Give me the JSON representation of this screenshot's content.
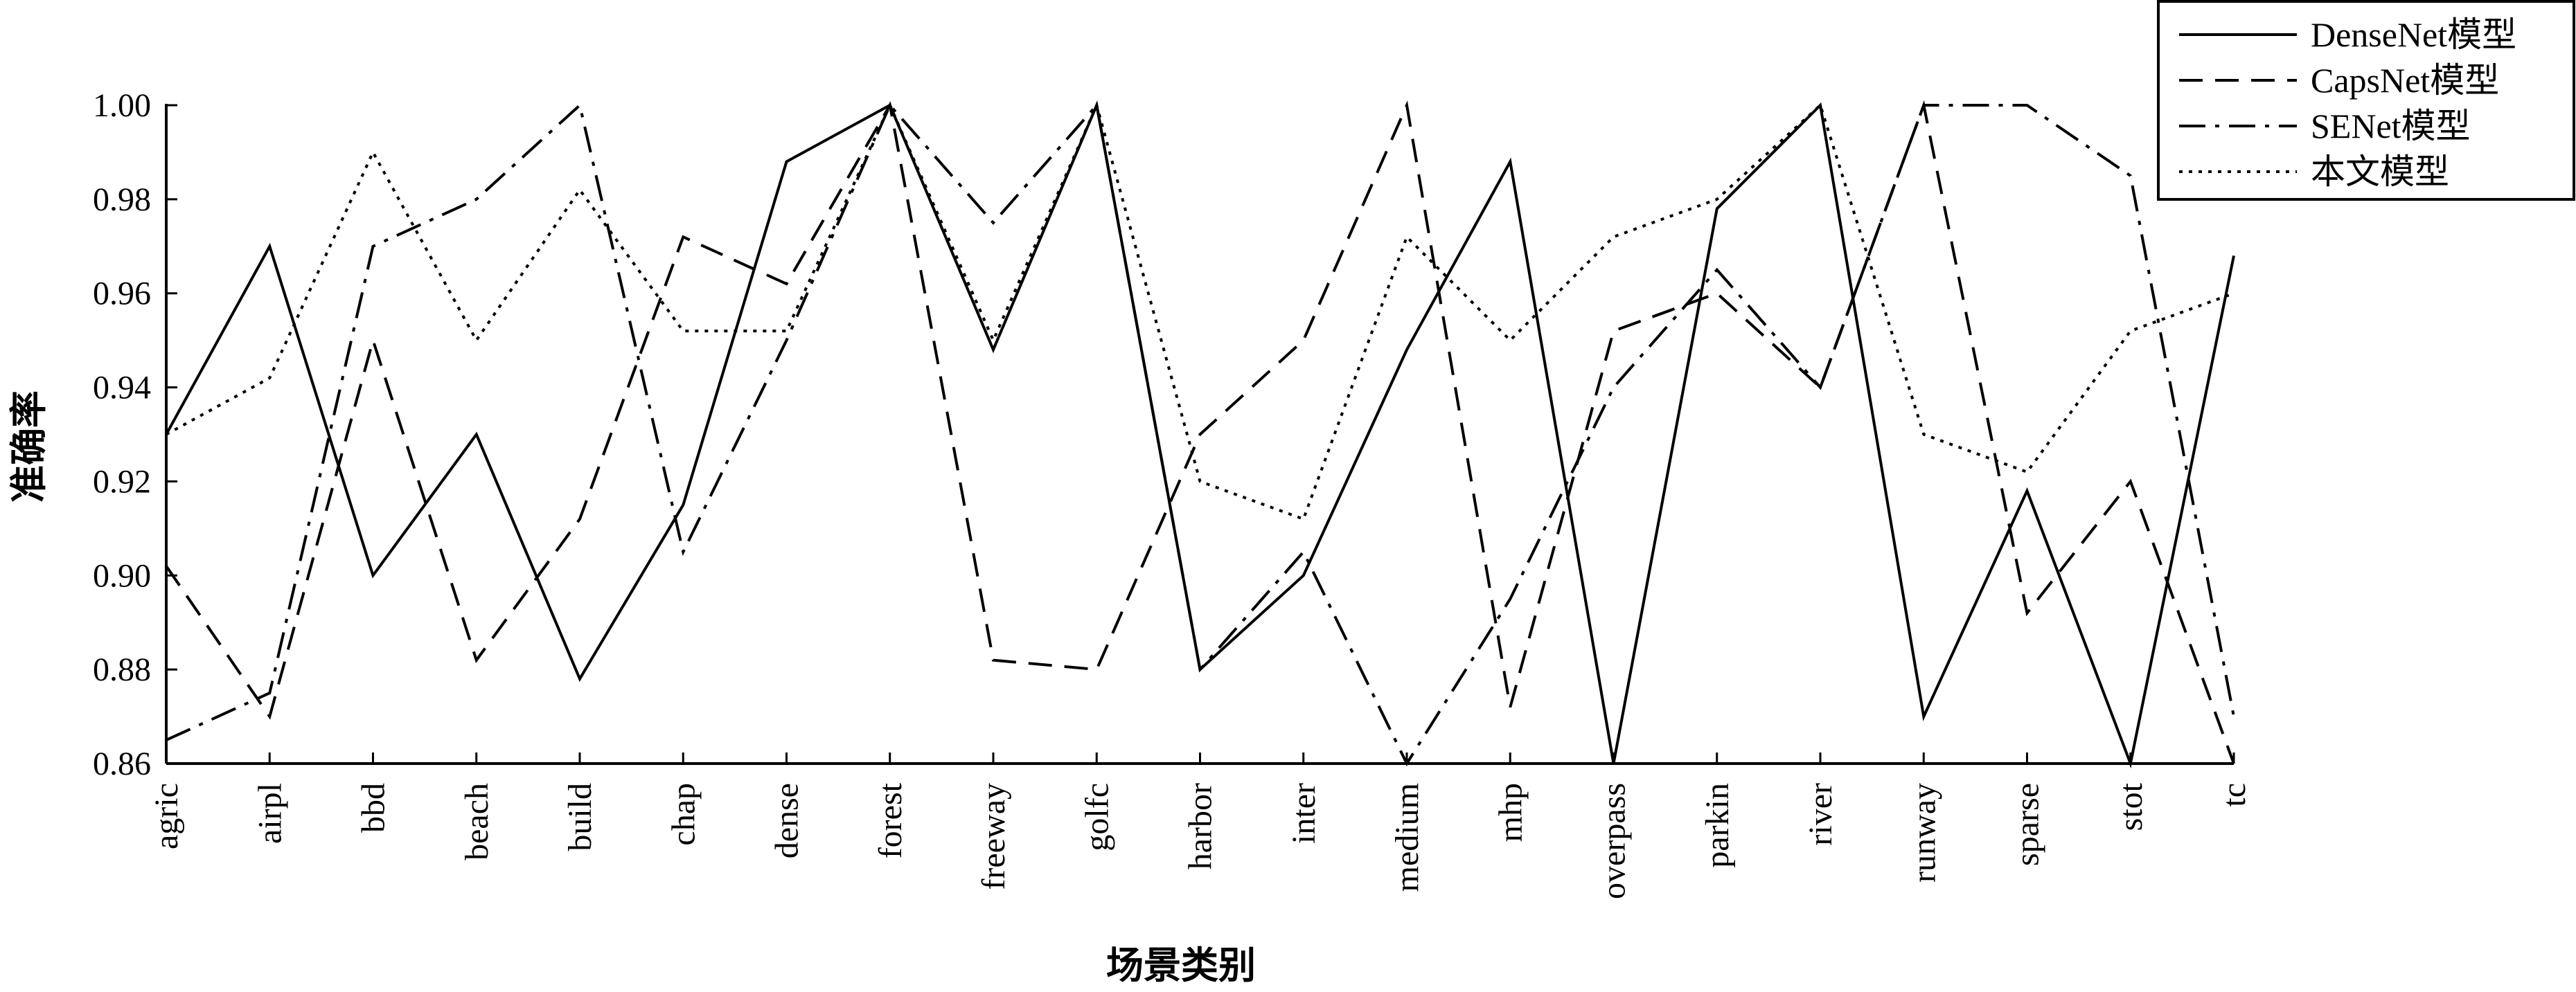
{
  "chart_data": {
    "type": "line",
    "title": "",
    "xlabel": "场景类别",
    "ylabel": "准确率",
    "ylim": [
      0.86,
      1.0
    ],
    "yticks": [
      "0.86",
      "0.88",
      "0.90",
      "0.92",
      "0.94",
      "0.96",
      "0.98",
      "1.00"
    ],
    "grid": false,
    "legend_position": "top-right",
    "categories": [
      "agric",
      "airpl",
      "bbd",
      "beach",
      "build",
      "chap",
      "dense",
      "forest",
      "freeway",
      "golfc",
      "harbor",
      "inter",
      "medium",
      "mhp",
      "overpass",
      "parkin",
      "river",
      "runway",
      "sparse",
      "stot",
      "tc"
    ],
    "series": [
      {
        "name": "DenseNet模型",
        "dash": "solid",
        "values": [
          0.93,
          0.97,
          0.9,
          0.93,
          0.878,
          0.915,
          0.988,
          1.0,
          0.948,
          1.0,
          0.88,
          0.9,
          0.948,
          0.988,
          0.86,
          0.978,
          1.0,
          0.87,
          0.918,
          0.86,
          0.968
        ]
      },
      {
        "name": "CapsNet模型",
        "dash": "dashed",
        "values": [
          0.902,
          0.87,
          0.95,
          0.882,
          0.912,
          0.972,
          0.962,
          1.0,
          0.882,
          0.88,
          0.93,
          0.95,
          1.0,
          0.872,
          0.952,
          0.96,
          0.94,
          1.0,
          0.892,
          0.92,
          0.86
        ]
      },
      {
        "name": "SENet模型",
        "dash": "dashdot",
        "values": [
          0.865,
          0.875,
          0.97,
          0.98,
          1.0,
          0.905,
          0.95,
          1.0,
          0.975,
          1.0,
          0.88,
          0.905,
          0.86,
          0.895,
          0.94,
          0.965,
          0.94,
          1.0,
          1.0,
          0.985,
          0.87
        ]
      },
      {
        "name": "本文模型",
        "dash": "dotted",
        "values": [
          0.93,
          0.942,
          0.99,
          0.95,
          0.982,
          0.952,
          0.952,
          1.0,
          0.95,
          1.0,
          0.92,
          0.912,
          0.972,
          0.95,
          0.972,
          0.98,
          1.0,
          0.93,
          0.922,
          0.952,
          0.96
        ]
      }
    ]
  }
}
